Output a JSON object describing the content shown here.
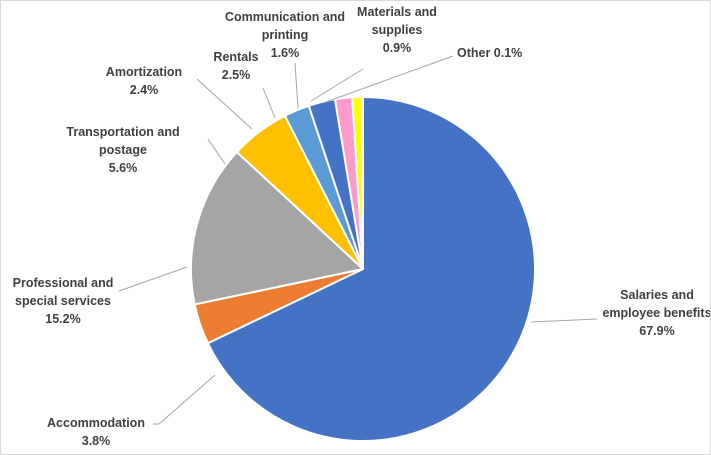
{
  "chart_data": {
    "type": "pie",
    "start_angle_deg": 0,
    "direction": "clockwise",
    "slices": [
      {
        "name": "Salaries and employee benefits",
        "value": 67.9,
        "color": "#4472C4",
        "label_lines": [
          "Salaries and",
          "employee benefits",
          "67.9%"
        ]
      },
      {
        "name": "Accommodation",
        "value": 3.8,
        "color": "#ED7D31",
        "label_lines": [
          "Accommodation",
          "3.8%"
        ]
      },
      {
        "name": "Professional and special services",
        "value": 15.2,
        "color": "#A5A5A5",
        "label_lines": [
          "Professional and",
          "special services",
          "15.2%"
        ]
      },
      {
        "name": "Transportation and postage",
        "value": 5.6,
        "color": "#FFC000",
        "label_lines": [
          "Transportation and",
          "postage",
          "5.6%"
        ]
      },
      {
        "name": "Amortization",
        "value": 2.4,
        "color": "#5B9BD5",
        "label_lines": [
          "Amortization",
          "2.4%"
        ]
      },
      {
        "name": "Rentals",
        "value": 2.5,
        "color": "#4472C4",
        "label_lines": [
          "Rentals",
          "2.5%"
        ]
      },
      {
        "name": "Communication and printing",
        "value": 1.6,
        "color": "#FF99CC",
        "label_lines": [
          "Communication and",
          "printing",
          "1.6%"
        ]
      },
      {
        "name": "Materials and supplies",
        "value": 0.9,
        "color": "#FFFF00",
        "label_lines": [
          "Materials and",
          "supplies",
          "0.9%"
        ]
      },
      {
        "name": "Other",
        "value": 0.1,
        "color": "#70AD47",
        "label_lines": [
          "Other 0.1%"
        ]
      }
    ]
  }
}
